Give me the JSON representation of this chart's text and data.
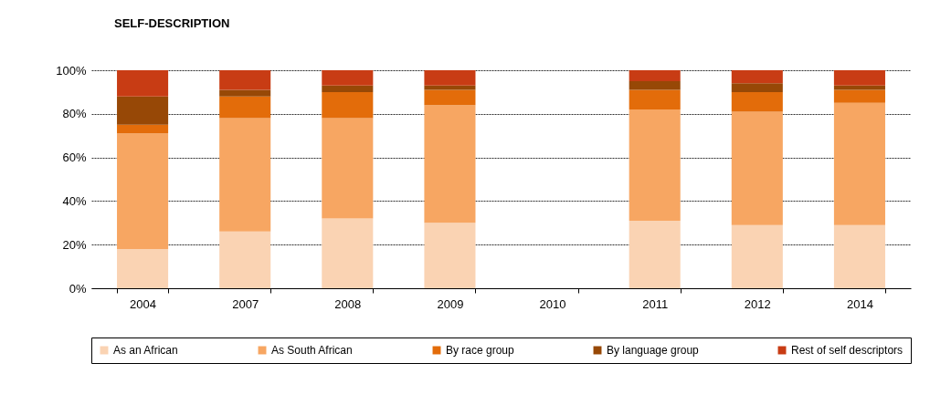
{
  "chart_data": {
    "type": "bar",
    "title": "SELF-DESCRIPTION",
    "stacked": true,
    "categories": [
      "2004",
      "2007",
      "2008",
      "2009",
      "2010",
      "2011",
      "2012",
      "2014"
    ],
    "series": [
      {
        "name": "As an African",
        "color": "#fad3b3",
        "values": [
          18,
          26,
          32,
          30,
          null,
          31,
          29,
          29
        ]
      },
      {
        "name": "As South African",
        "color": "#f7a662",
        "values": [
          53,
          52,
          46,
          54,
          null,
          51,
          52,
          56
        ]
      },
      {
        "name": "By race group",
        "color": "#e36c0a",
        "values": [
          4,
          10,
          12,
          7,
          null,
          9,
          9,
          6
        ]
      },
      {
        "name": "By language group",
        "color": "#974806",
        "values": [
          13,
          3,
          3,
          2,
          null,
          4,
          4,
          2
        ]
      },
      {
        "name": "Rest of self descriptors",
        "color": "#c83c14",
        "values": [
          12,
          9,
          7,
          7,
          null,
          5,
          6,
          7
        ]
      }
    ],
    "ylim": [
      0,
      100
    ],
    "yticks": [
      {
        "value": 0,
        "label": "0%"
      },
      {
        "value": 20,
        "label": "20%"
      },
      {
        "value": 40,
        "label": "40%"
      },
      {
        "value": 60,
        "label": "60%"
      },
      {
        "value": 80,
        "label": "80%"
      },
      {
        "value": 100,
        "label": "100%"
      }
    ],
    "grid": "y",
    "legend": "bottom"
  }
}
